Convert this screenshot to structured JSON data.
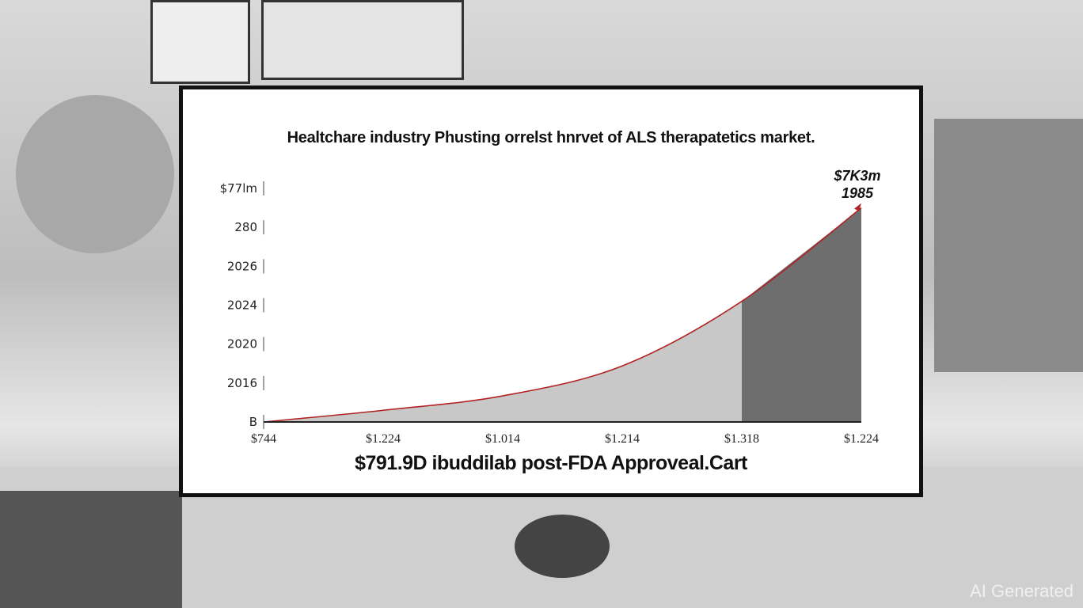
{
  "chart_data": {
    "type": "area",
    "title": "Healtchare industry Phusting orrelst hnrvet of ALS therapatetics market.",
    "subtitle": "$791.9D ibuddilab post-FDA Approveal.Cart",
    "x_tick_labels": [
      "$744",
      "$1.224",
      "$1.014",
      "$1.214",
      "$1.318",
      "$1.224"
    ],
    "y_tick_labels": [
      "B",
      "2016",
      "2020",
      "2024",
      "2026",
      "280",
      "$77lm"
    ],
    "values": [
      0,
      0.3,
      0.67,
      1.44,
      3.1,
      5.5
    ],
    "ylim": [
      0,
      6
    ],
    "highlight_from_index": 4,
    "end_annotation": [
      "$7K3m",
      "1985"
    ],
    "colors": {
      "line": "#b22222",
      "area": "#c8c8c8",
      "highlight": "#6e6e6e"
    },
    "grid": false
  },
  "watermark": "AI Generated"
}
